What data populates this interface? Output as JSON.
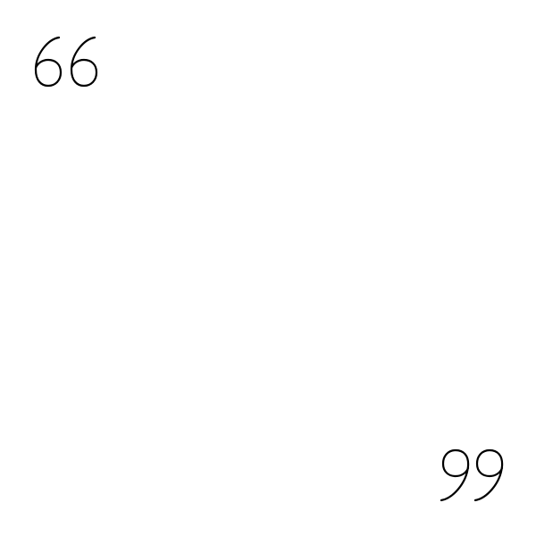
{
  "quote_marks": {
    "open_text": "66",
    "close_text": "99"
  },
  "colors": {
    "background": "#ffffff",
    "glyph": "#000000"
  }
}
